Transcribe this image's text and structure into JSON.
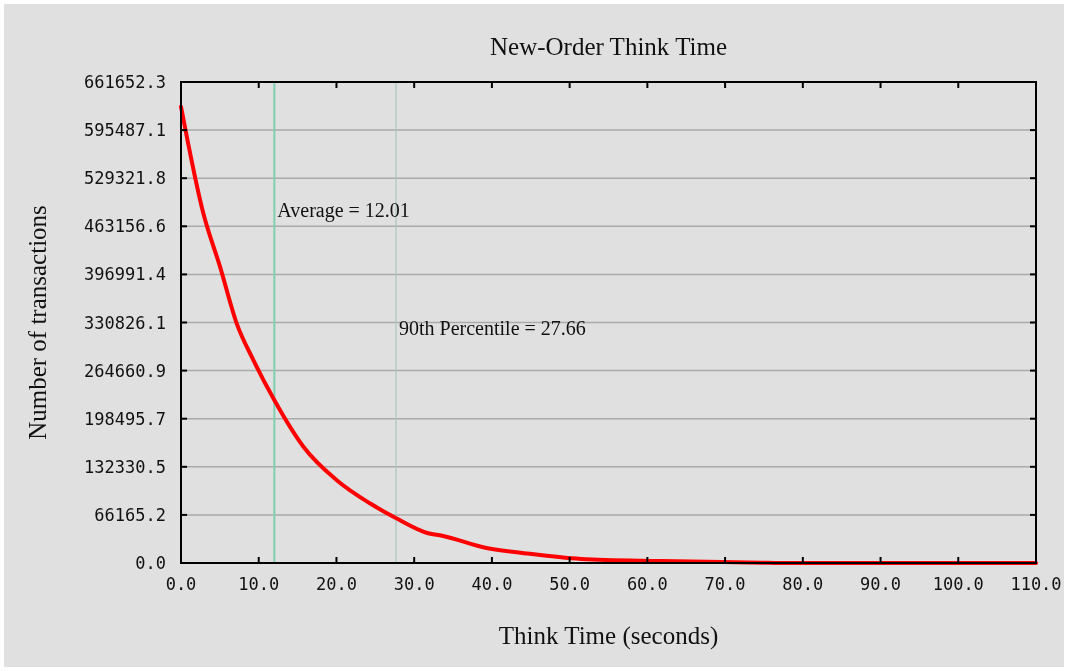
{
  "chart_data": {
    "type": "line",
    "title": "New-Order Think Time",
    "xlabel": "Think Time (seconds)",
    "ylabel": "Number of transactions",
    "x": [
      0,
      2.87,
      5.02,
      7.16,
      9.31,
      12.0,
      15.75,
      20.0,
      24.3,
      27.7,
      31.8,
      33.6,
      39.0,
      44.4,
      51.5,
      61.8,
      74.8,
      77,
      110
    ],
    "series": [
      {
        "color": "#ff0000",
        "values": [
          627700,
          481000,
          407600,
          329700,
          279200,
          224200,
          160000,
          114200,
          82100,
          61500,
          40900,
          37500,
          21300,
          13200,
          5600,
          2700,
          400,
          0,
          0
        ]
      }
    ],
    "xlim": [
      0,
      110
    ],
    "ylim": [
      0,
      661652.3
    ],
    "xticks": [
      {
        "value": 0,
        "label": "0.0"
      },
      {
        "value": 10,
        "label": "10.0"
      },
      {
        "value": 20,
        "label": "20.0"
      },
      {
        "value": 30,
        "label": "30.0"
      },
      {
        "value": 40,
        "label": "40.0"
      },
      {
        "value": 50,
        "label": "50.0"
      },
      {
        "value": 60,
        "label": "60.0"
      },
      {
        "value": 70,
        "label": "70.0"
      },
      {
        "value": 80,
        "label": "80.0"
      },
      {
        "value": 90,
        "label": "90.0"
      },
      {
        "value": 100,
        "label": "100.0"
      },
      {
        "value": 110,
        "label": "110.0"
      }
    ],
    "yticks": [
      {
        "value": 0,
        "label": "0.0"
      },
      66165.2,
      132330.5,
      198495.7,
      264660.9,
      330826.1,
      396991.4,
      463156.6,
      529321.8,
      595487.1,
      661652.3
    ],
    "grid": "y",
    "ref_lines": [
      {
        "axis": "x",
        "value": 12.01,
        "color": "#7fcfb0"
      },
      {
        "axis": "x",
        "value": 27.66,
        "color": "#a8c8c0"
      }
    ],
    "annotations": [
      {
        "text": "Average = 12.01",
        "x": 12.01,
        "y": 485600
      },
      {
        "text": "90th Percentile = 27.66",
        "x": 27.66,
        "y": 323300
      }
    ]
  }
}
